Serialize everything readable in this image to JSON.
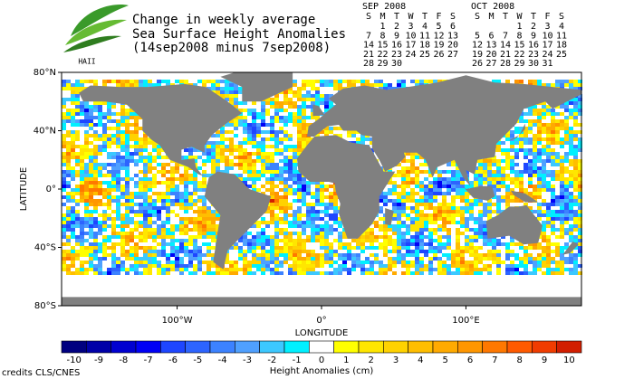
{
  "header": {
    "title_lines": [
      "Change in weekly average",
      "Sea Surface Height Anomalies",
      "(14sep2008 minus 7sep2008)"
    ],
    "logo_text": "HAII"
  },
  "calendars": [
    {
      "month": "SEP 2008",
      "weekdays": [
        "S",
        "M",
        "T",
        "W",
        "T",
        "F",
        "S"
      ],
      "weeks": [
        [
          null,
          1,
          2,
          3,
          4,
          5,
          6
        ],
        [
          7,
          8,
          9,
          10,
          11,
          12,
          13
        ],
        [
          14,
          15,
          16,
          17,
          18,
          19,
          20
        ],
        [
          21,
          22,
          23,
          24,
          25,
          26,
          27
        ],
        [
          28,
          29,
          30,
          null,
          null,
          null,
          null
        ]
      ],
      "highlight_weeks": [
        1,
        2
      ],
      "highlight_color": "#1a1aa0"
    },
    {
      "month": "OCT 2008",
      "weekdays": [
        "S",
        "M",
        "T",
        "W",
        "T",
        "F",
        "S"
      ],
      "weeks": [
        [
          null,
          null,
          null,
          1,
          2,
          3,
          4
        ],
        [
          5,
          6,
          7,
          8,
          9,
          10,
          11
        ],
        [
          12,
          13,
          14,
          15,
          16,
          17,
          18
        ],
        [
          19,
          20,
          21,
          22,
          23,
          24,
          25
        ],
        [
          26,
          27,
          28,
          29,
          30,
          31,
          null
        ]
      ],
      "highlight_weeks": [],
      "highlight_color": "#1a1aa0"
    }
  ],
  "map": {
    "xlabel": "LONGITUDE",
    "ylabel": "LATITUDE",
    "xlim": [
      -180,
      180
    ],
    "ylim": [
      -80,
      80
    ],
    "xticks": [
      {
        "value": -100,
        "label": "100°W"
      },
      {
        "value": 0,
        "label": "0°"
      },
      {
        "value": 100,
        "label": "100°E"
      }
    ],
    "yticks": [
      {
        "value": 80,
        "label": "80°N"
      },
      {
        "value": 40,
        "label": "40°N"
      },
      {
        "value": 0,
        "label": "0°"
      },
      {
        "value": -40,
        "label": "40°S"
      },
      {
        "value": -80,
        "label": "80°S"
      }
    ],
    "land_color": "#808080"
  },
  "colorbar": {
    "label": "Height Anomalies (cm)",
    "ticks": [
      -10,
      -9,
      -8,
      -7,
      -6,
      -5,
      -4,
      -3,
      -2,
      -1,
      0,
      1,
      2,
      3,
      4,
      5,
      6,
      7,
      8,
      9,
      10
    ],
    "colors": [
      "#000080",
      "#0000a8",
      "#0000d0",
      "#0000f5",
      "#1e46ff",
      "#2d64ff",
      "#3c82ff",
      "#4fa0ff",
      "#3cc8ff",
      "#00f0ff",
      "#ffffff",
      "#ffff00",
      "#ffe600",
      "#ffd200",
      "#ffbe00",
      "#ffaa00",
      "#ff9600",
      "#ff7800",
      "#ff5a00",
      "#f03c00",
      "#d21e00"
    ]
  },
  "credits": "credits CLS/CNES"
}
